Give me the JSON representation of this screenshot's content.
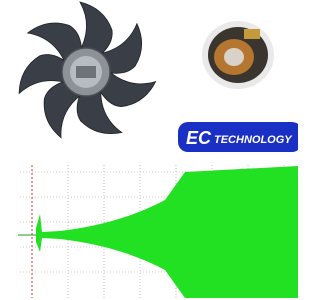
{
  "badge": {
    "brand": "EC",
    "label": "TECHNOLOGY"
  }
}
